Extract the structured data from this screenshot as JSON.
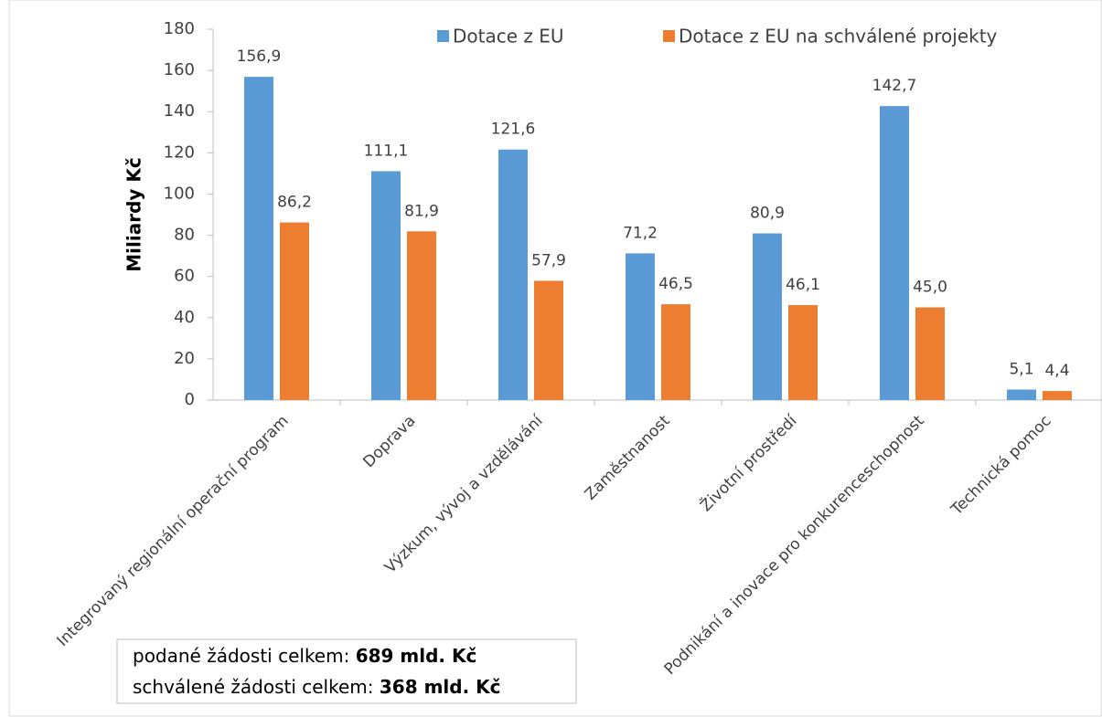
{
  "chart_data": {
    "type": "bar",
    "y_label": "Miliardy Kč",
    "categories": [
      "Integrovaný regionální operační program",
      "Doprava",
      "Výzkum, vývoj a vzdělávání",
      "Zaměstnanost",
      "Životní prostředí",
      "Podnikání a inovace pro konkurenceschopnost",
      "Technická pomoc"
    ],
    "series": [
      {
        "name": "Dotace z EU",
        "color": "#5b9bd5",
        "values": [
          156.9,
          111.1,
          121.6,
          71.2,
          80.9,
          142.7,
          5.1
        ],
        "value_labels": [
          "156,9",
          "111,1",
          "121,6",
          "71,2",
          "80,9",
          "142,7",
          "5,1"
        ]
      },
      {
        "name": "Dotace z EU na schválené projekty",
        "color": "#ed7d31",
        "values": [
          86.2,
          81.9,
          57.9,
          46.5,
          46.1,
          45.0,
          4.4
        ],
        "value_labels": [
          "86,2",
          "81,9",
          "57,9",
          "46,5",
          "46,1",
          "45,0",
          "4,4"
        ]
      }
    ],
    "ylim": [
      0,
      180
    ],
    "yticks": [
      0,
      20,
      40,
      60,
      80,
      100,
      120,
      140,
      160,
      180
    ],
    "legend": "top",
    "annotations": [
      {
        "text": "podané žádosti celkem:",
        "bold": "689 mld. Kč"
      },
      {
        "text": "schválené žádosti celkem:",
        "bold": "368 mld. Kč"
      }
    ]
  }
}
